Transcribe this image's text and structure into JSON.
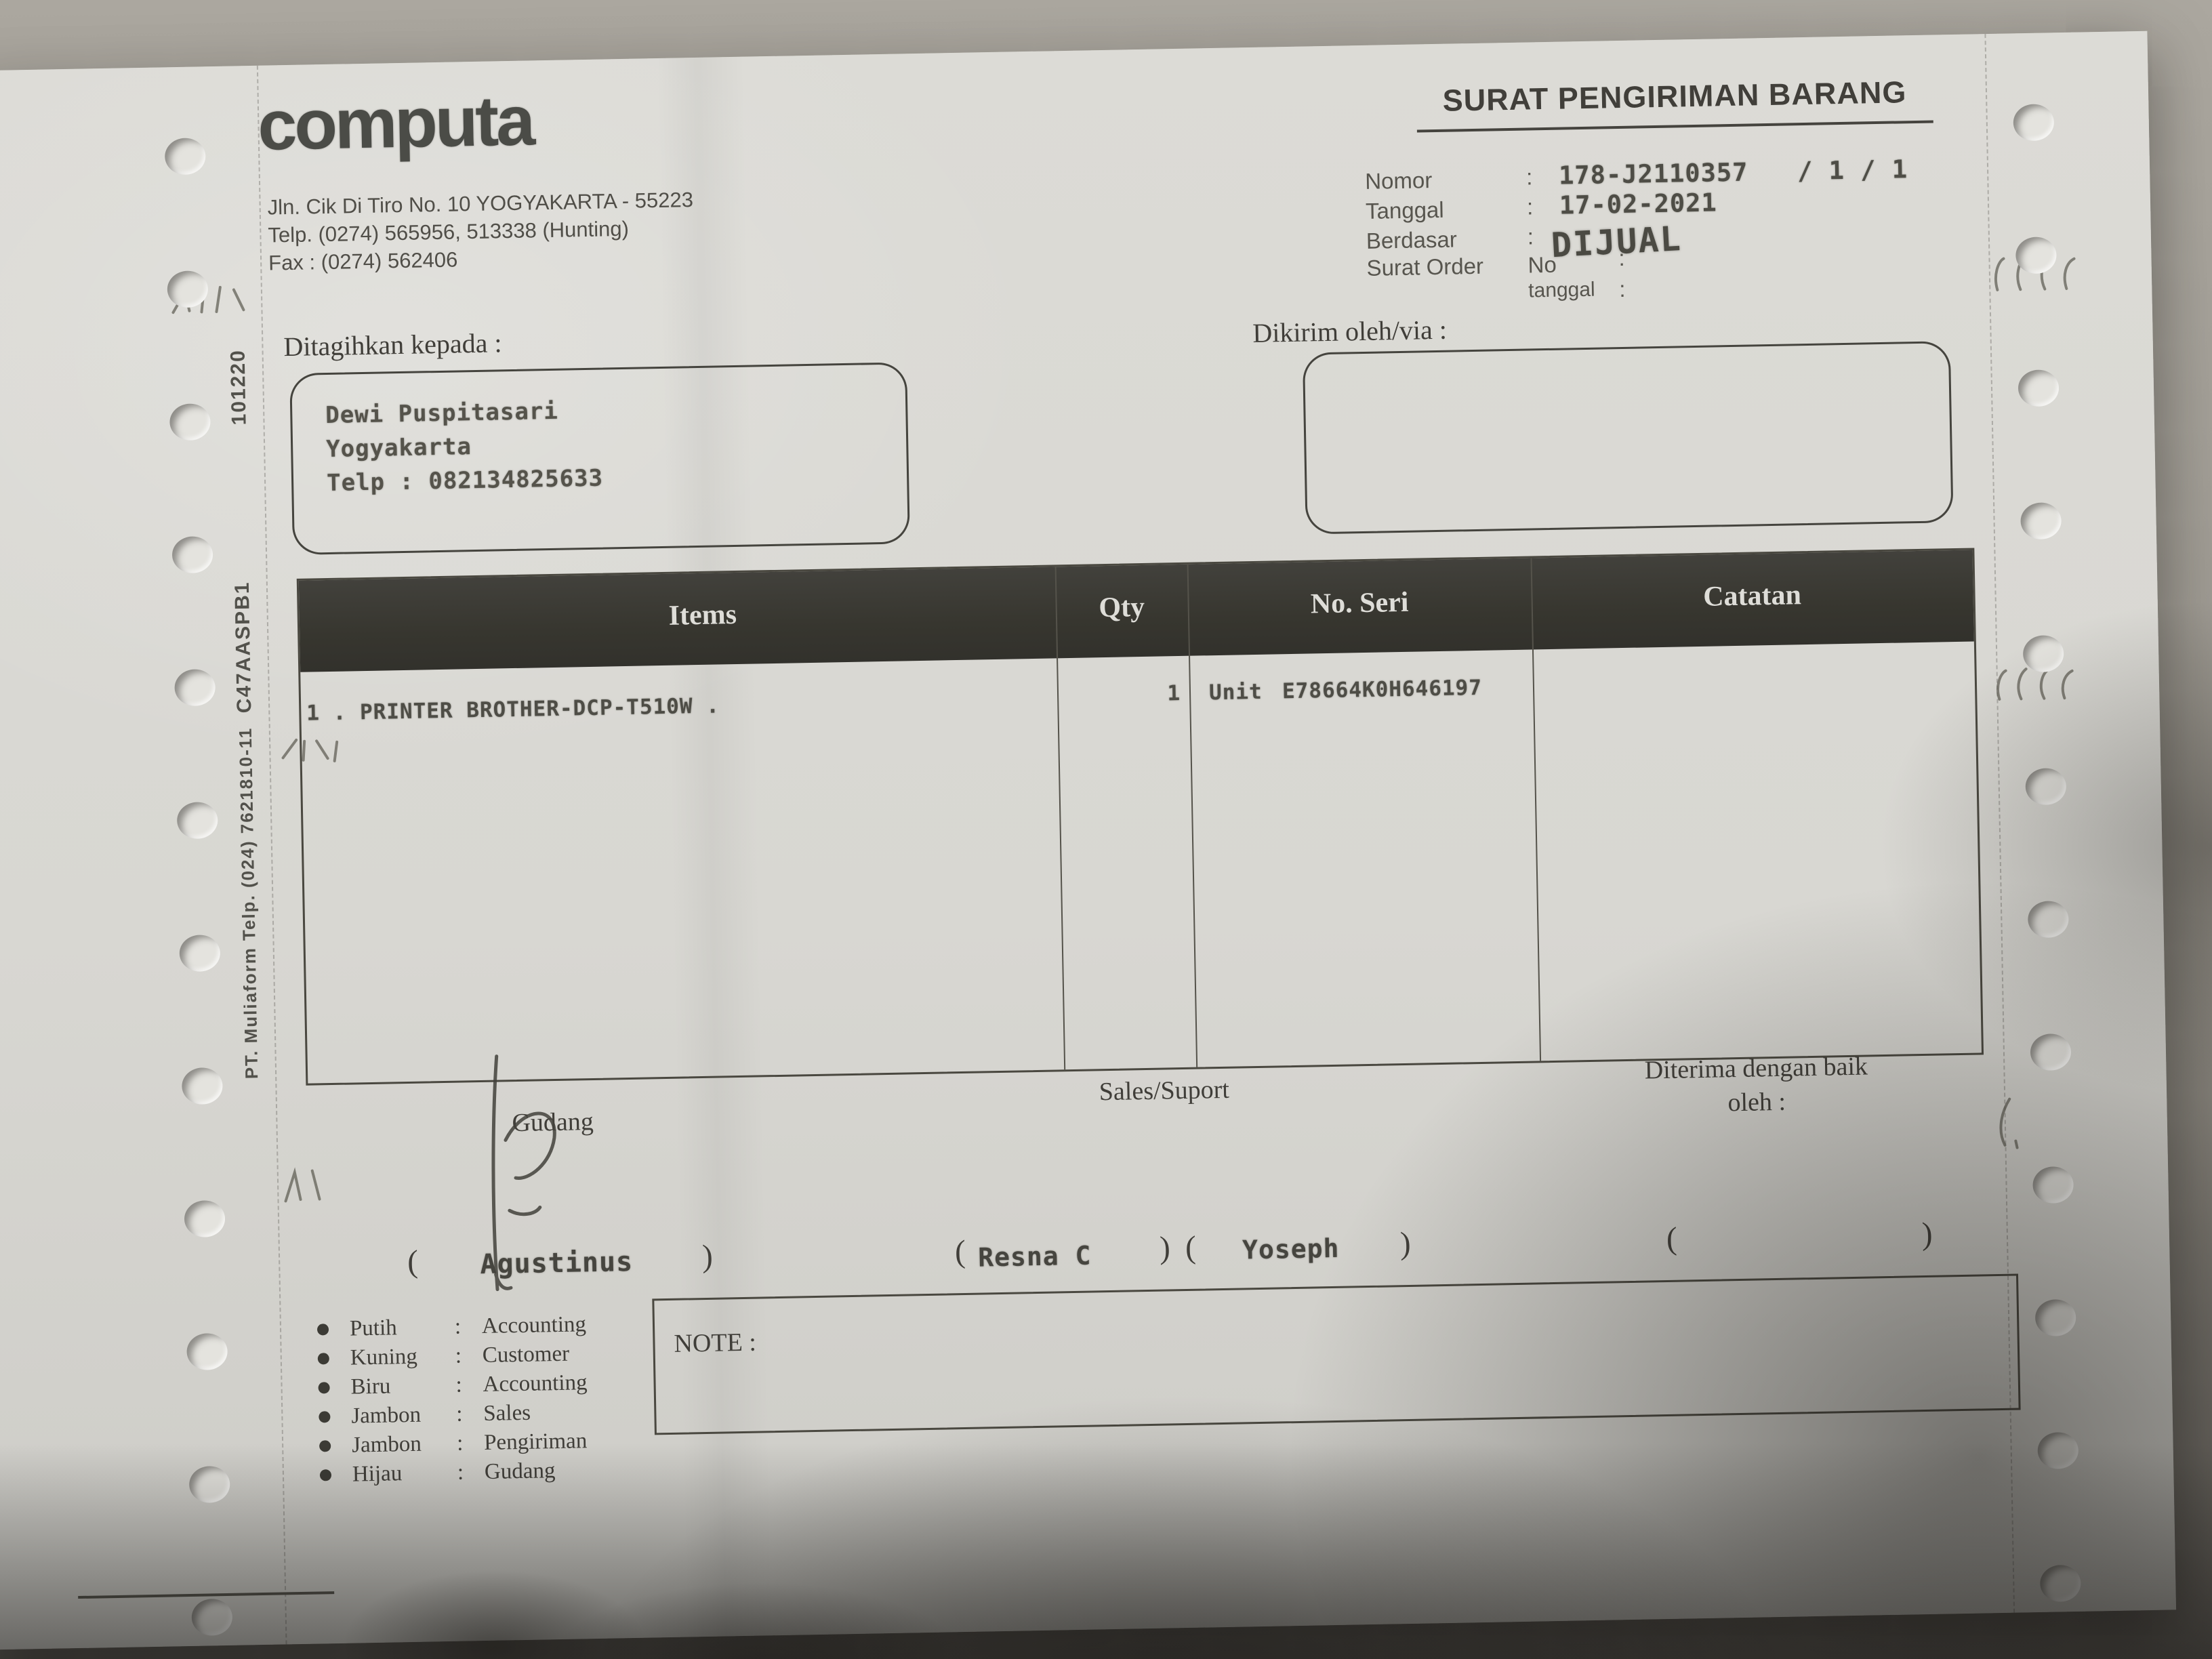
{
  "company": {
    "logo": "computa",
    "address_1": "Jln. Cik Di Tiro No. 10 YOGYAKARTA - 55223",
    "address_2": "Telp.  (0274) 565956, 513338 (Hunting)",
    "address_3": "Fax : (0274) 562406"
  },
  "header": {
    "title": "SURAT PENGIRIMAN BARANG",
    "nomor_label": "Nomor",
    "nomor_value": "178-J2110357",
    "nomor_pages": "/ 1 / 1",
    "tanggal_label": "Tanggal",
    "tanggal_value": "17-02-2021",
    "berdasar_label": "Berdasar",
    "surat_order_label": "Surat Order",
    "no_label": "No",
    "order_tanggal_label": "tanggal",
    "colon": ":",
    "stamp": "DIJUAL"
  },
  "billing": {
    "label": "Ditagihkan  kepada :",
    "name": "Dewi Puspitasari",
    "city": "Yogyakarta",
    "phone": "Telp : 082134825633"
  },
  "shipping": {
    "label": "Dikirim  oleh/via :"
  },
  "table": {
    "col_items": "Items",
    "col_qty": "Qty",
    "col_seri": "No. Seri",
    "col_catatan": "Catatan",
    "row": {
      "item": "1 . PRINTER BROTHER-DCP-T510W .",
      "qty": "1",
      "unit": "Unit",
      "serial": "E78664K0H646197",
      "catatan": ""
    }
  },
  "footer": {
    "gudang_label": "Gudang",
    "sales_label": "Sales/Suport",
    "received_line1": "Diterima  dengan  baik",
    "received_line2": "oleh :",
    "sig_gudang": "Agustinus",
    "sig_sales": "Resna C",
    "sig_support": "Yoseph",
    "paren_open": "(",
    "paren_close": ")"
  },
  "legend": [
    {
      "color": "Putih",
      "colon": ":",
      "dept": "Accounting"
    },
    {
      "color": "Kuning",
      "colon": ":",
      "dept": "Customer"
    },
    {
      "color": "Biru",
      "colon": ":",
      "dept": "Accounting"
    },
    {
      "color": "Jambon",
      "colon": ":",
      "dept": "Sales"
    },
    {
      "color": "Jambon",
      "colon": ":",
      "dept": "Pengiriman"
    },
    {
      "color": "Hijau",
      "colon": ":",
      "dept": "Gudang"
    }
  ],
  "note": {
    "label": "NOTE :"
  },
  "side": {
    "code_top": "101220",
    "code_mid": "C47AASPB1",
    "printer": "PT. Muliaform Telp. (024) 7621810-11"
  },
  "colors": {
    "paper": "#d9d8d3",
    "ink": "#45443e",
    "table_header_bg": "#393834",
    "background": "#9c988f"
  }
}
